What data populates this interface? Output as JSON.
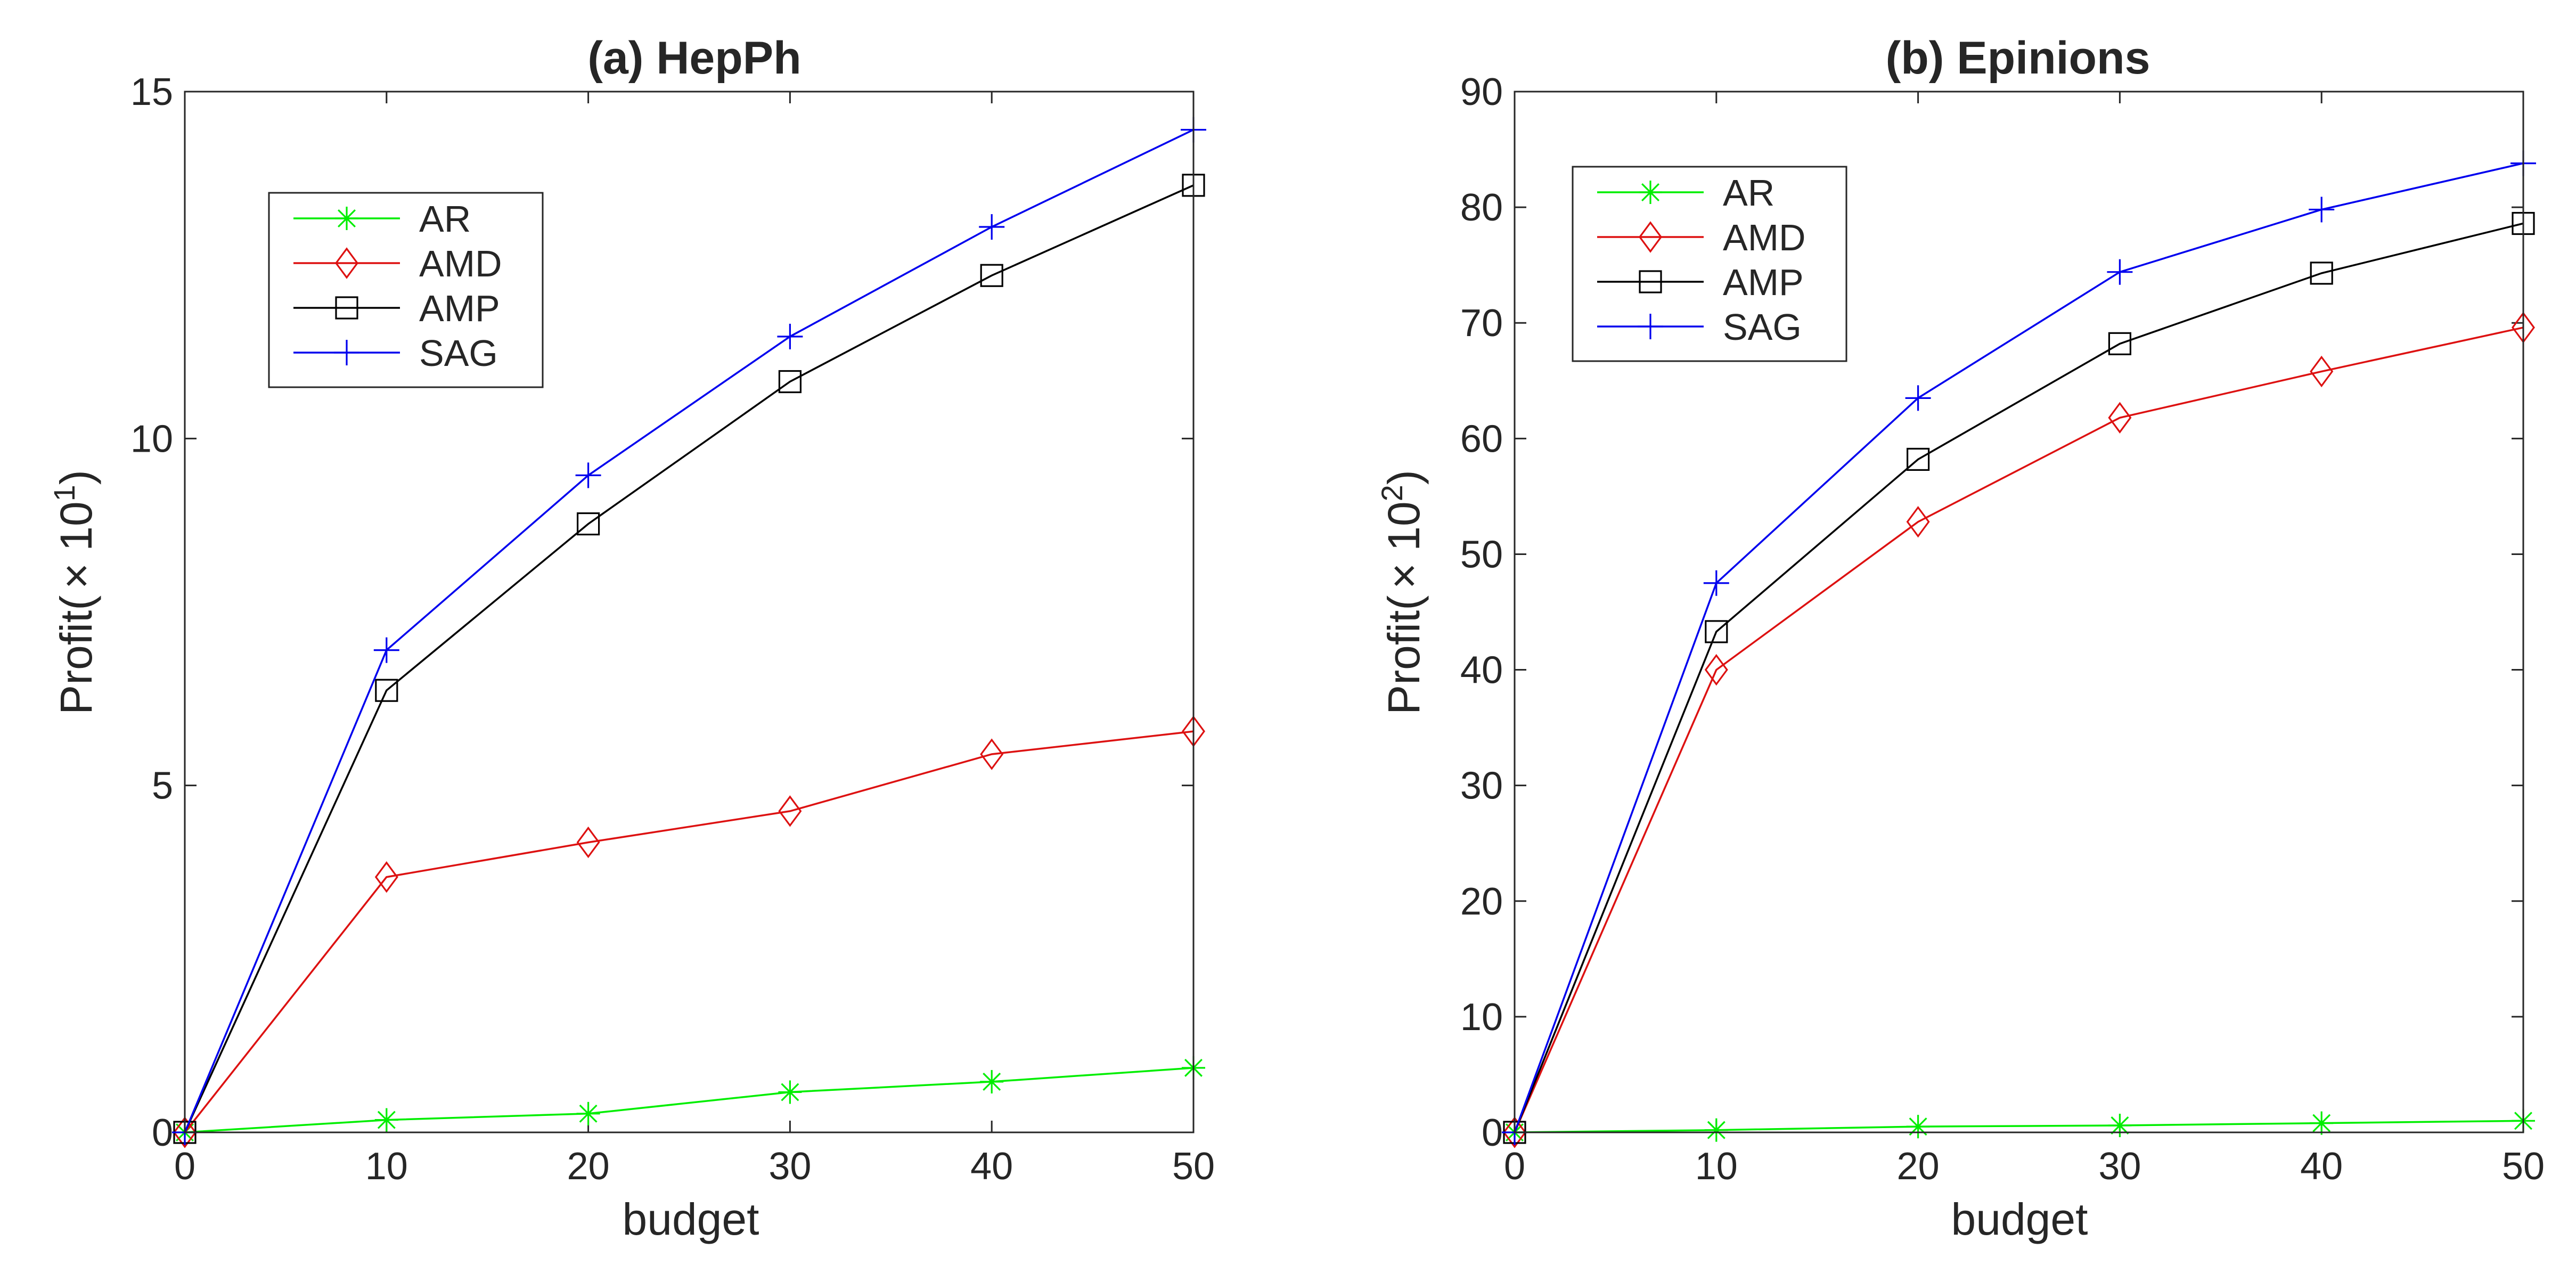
{
  "chart_data": [
    {
      "type": "line",
      "title": "(a) HepPh",
      "xlabel": "budget",
      "ylabel_prefix": "Profit(",
      "ylabel_times": "×",
      "ylabel_base": "10",
      "ylabel_exp": "1",
      "ylabel_suffix": ")",
      "x": [
        0,
        10,
        20,
        30,
        40,
        50
      ],
      "xlim": [
        0,
        50
      ],
      "ylim": [
        0,
        15
      ],
      "xticks": [
        "0",
        "10",
        "20",
        "30",
        "40",
        "50"
      ],
      "yticks": [
        "0",
        "5",
        "10",
        "15"
      ],
      "yticks_values": [
        0,
        5,
        10,
        15
      ],
      "grid": false,
      "legend_position": "top-left",
      "series": [
        {
          "name": "AR",
          "color": "#00ee00",
          "marker": "asterisk",
          "values": [
            0,
            0.18,
            0.27,
            0.58,
            0.73,
            0.93
          ]
        },
        {
          "name": "AMD",
          "color": "#dd1111",
          "marker": "diamond",
          "values": [
            0,
            3.68,
            4.18,
            4.63,
            5.45,
            5.78
          ]
        },
        {
          "name": "AMP",
          "color": "#000000",
          "marker": "square",
          "values": [
            0,
            6.37,
            8.77,
            10.82,
            12.35,
            13.65
          ]
        },
        {
          "name": "SAG",
          "color": "#0000ee",
          "marker": "plus",
          "values": [
            0,
            6.95,
            9.47,
            11.47,
            13.05,
            14.45
          ]
        }
      ]
    },
    {
      "type": "line",
      "title": "(b) Epinions",
      "xlabel": "budget",
      "ylabel_prefix": "Profit(",
      "ylabel_times": "×",
      "ylabel_base": "10",
      "ylabel_exp": "2",
      "ylabel_suffix": ")",
      "x": [
        0,
        10,
        20,
        30,
        40,
        50
      ],
      "xlim": [
        0,
        50
      ],
      "ylim": [
        0,
        90
      ],
      "xticks": [
        "0",
        "10",
        "20",
        "30",
        "40",
        "50"
      ],
      "yticks": [
        "0",
        "10",
        "20",
        "30",
        "40",
        "50",
        "60",
        "70",
        "80",
        "90"
      ],
      "yticks_values": [
        0,
        10,
        20,
        30,
        40,
        50,
        60,
        70,
        80,
        90
      ],
      "grid": false,
      "legend_position": "top-left",
      "series": [
        {
          "name": "AR",
          "color": "#00ee00",
          "marker": "asterisk",
          "values": [
            0,
            0.2,
            0.5,
            0.6,
            0.8,
            1.0
          ]
        },
        {
          "name": "AMD",
          "color": "#dd1111",
          "marker": "diamond",
          "values": [
            0,
            40.0,
            52.8,
            61.8,
            65.8,
            69.6
          ]
        },
        {
          "name": "AMP",
          "color": "#000000",
          "marker": "square",
          "values": [
            0,
            43.3,
            58.2,
            68.2,
            74.3,
            78.6
          ]
        },
        {
          "name": "SAG",
          "color": "#0000ee",
          "marker": "plus",
          "values": [
            0,
            47.5,
            63.5,
            74.4,
            79.8,
            83.8
          ]
        }
      ]
    }
  ]
}
